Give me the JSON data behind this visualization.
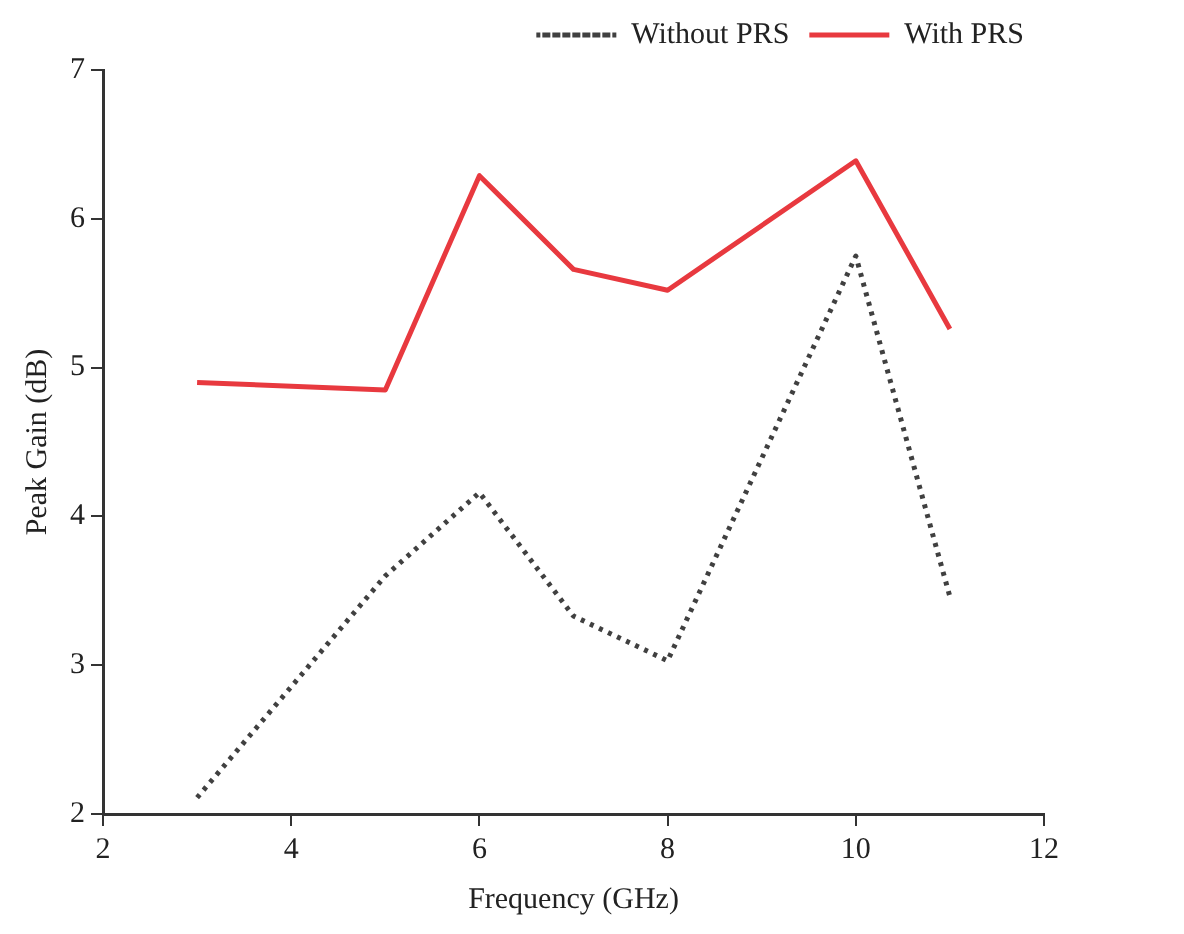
{
  "chart_data": {
    "type": "line",
    "xlabel": "Frequency (GHz)",
    "ylabel": "Peak Gain (dB)",
    "x": [
      3,
      5,
      6,
      7,
      8,
      10,
      11
    ],
    "series": [
      {
        "name": "Without PRS",
        "color": "#404040",
        "line_style": "dotted",
        "values": [
          2.11,
          3.6,
          4.16,
          3.33,
          3.03,
          5.75,
          3.46
        ]
      },
      {
        "name": "With PRS",
        "color": "#e8393f",
        "line_style": "solid",
        "values": [
          4.9,
          4.85,
          6.29,
          5.66,
          5.52,
          6.39,
          5.26
        ]
      }
    ],
    "xlim": [
      2,
      12
    ],
    "xticks": [
      2,
      4,
      6,
      8,
      10,
      12
    ],
    "ylim": [
      2,
      7
    ],
    "yticks": [
      2,
      3,
      4,
      5,
      6,
      7
    ],
    "grid": false,
    "legend": "top right",
    "marker": "none"
  }
}
